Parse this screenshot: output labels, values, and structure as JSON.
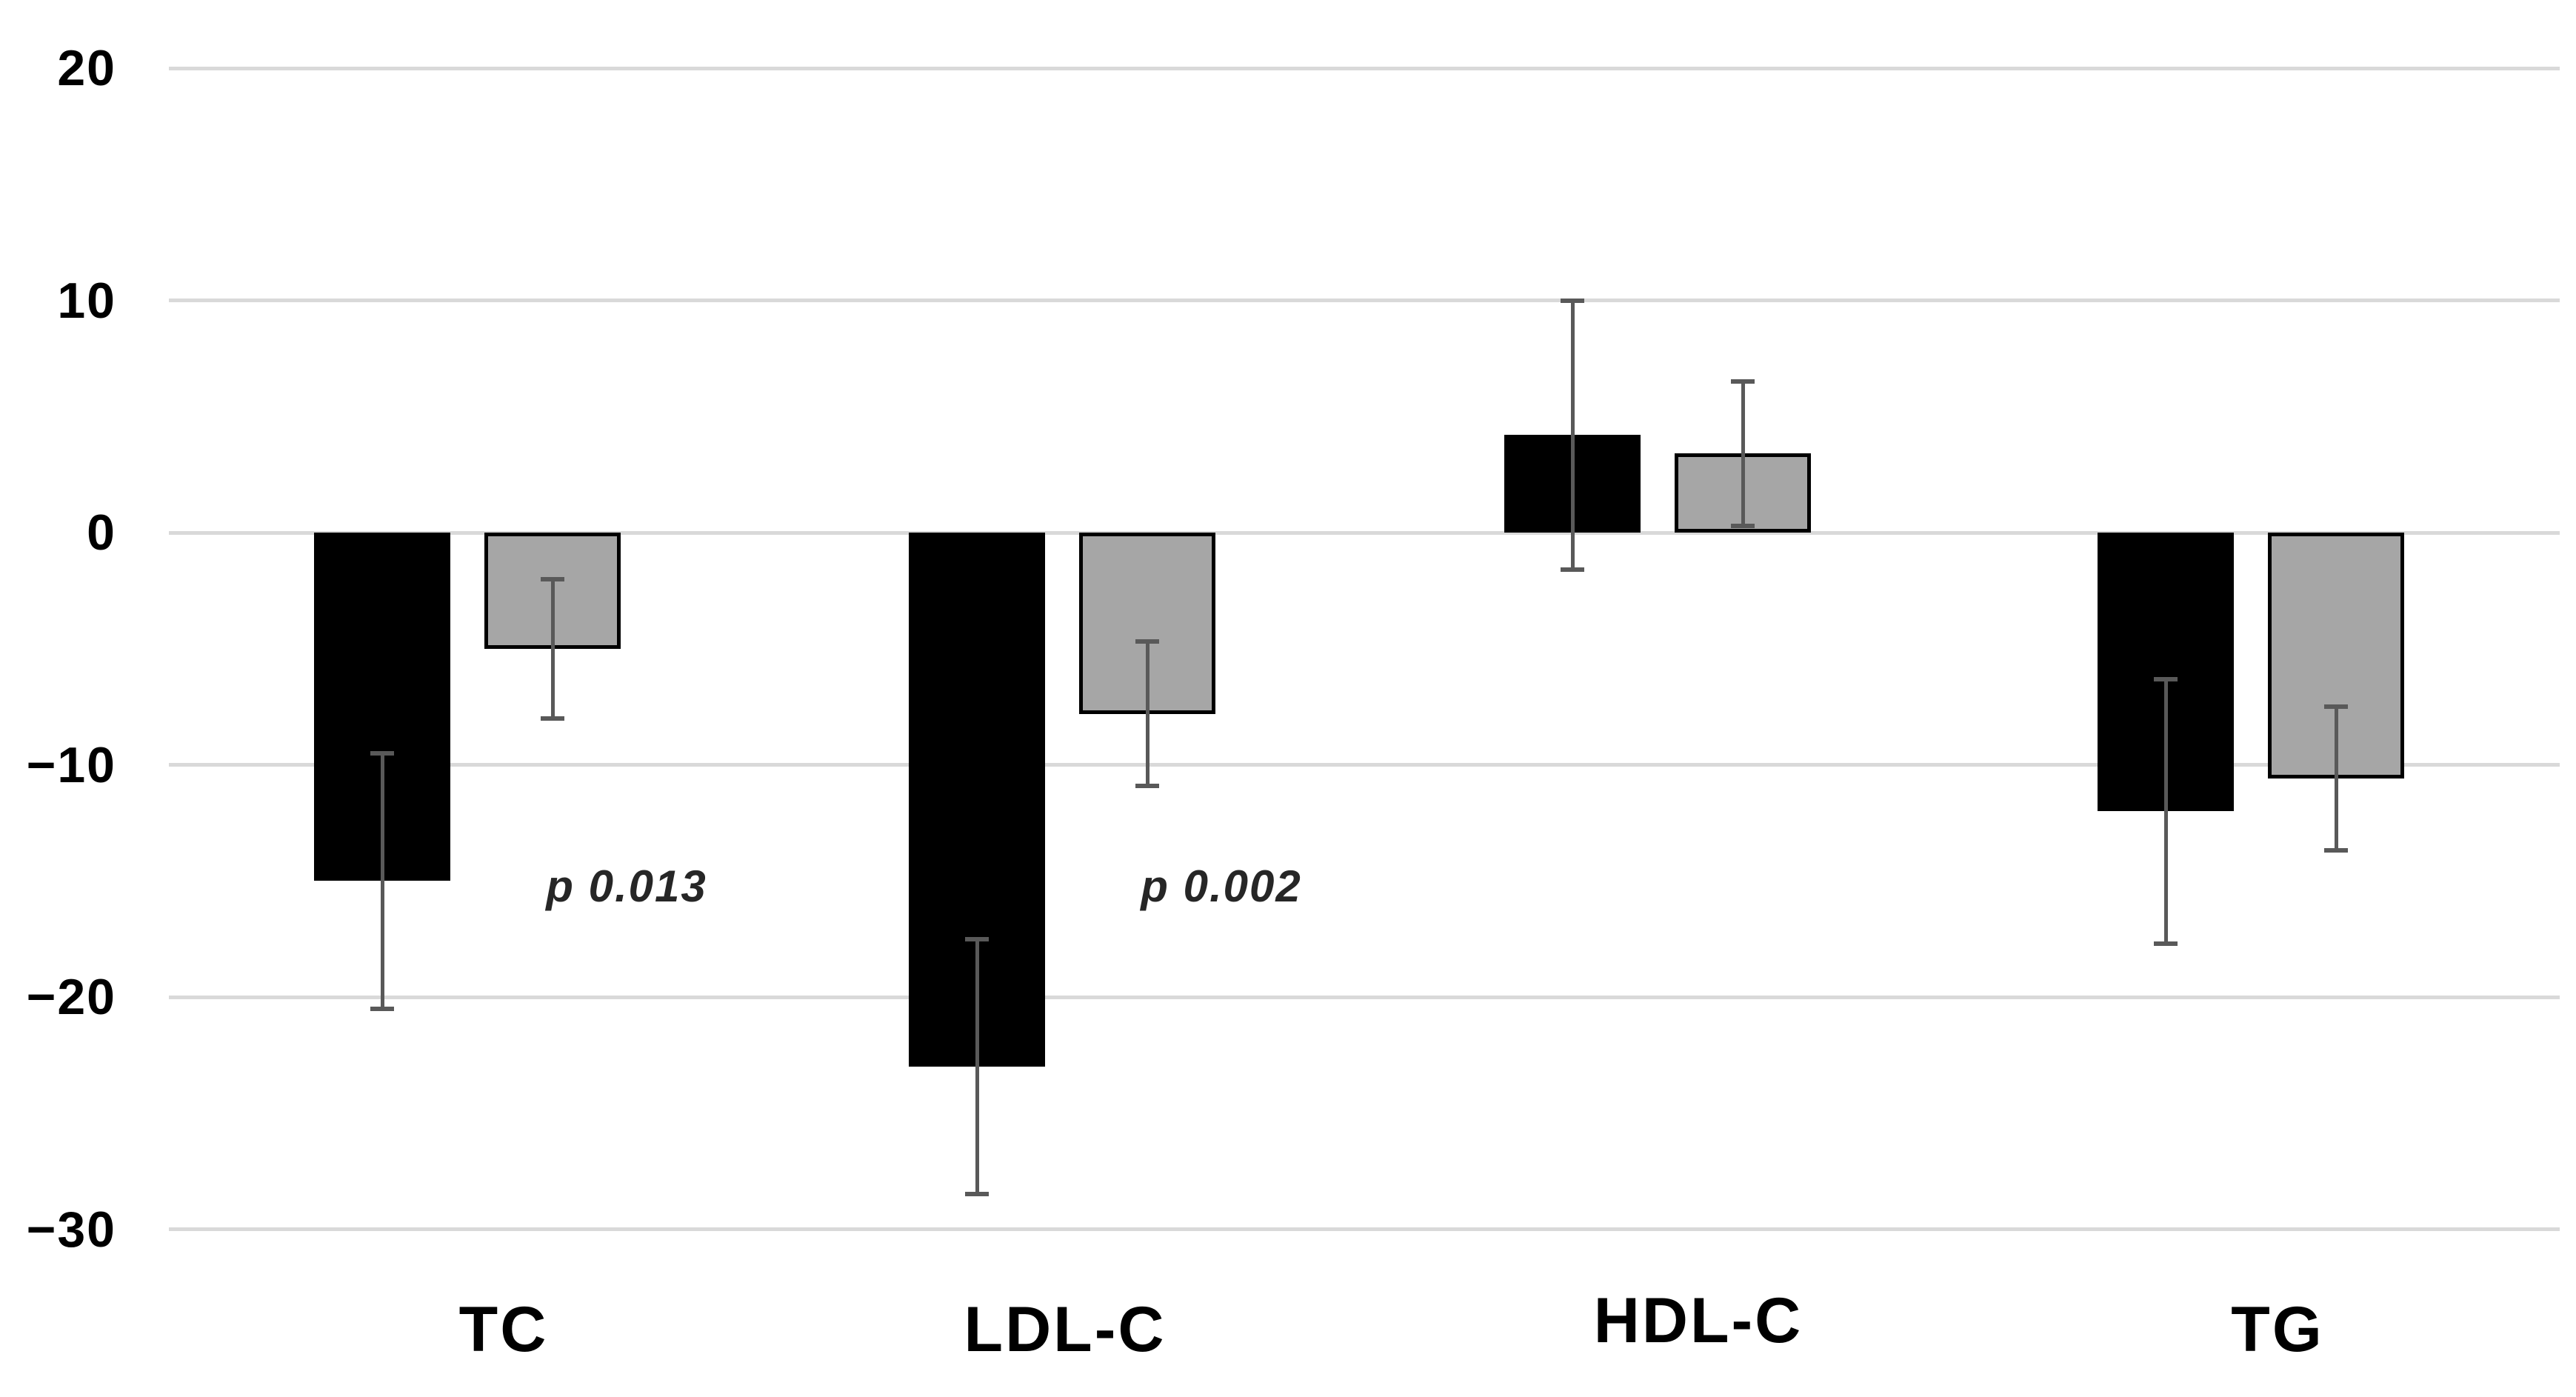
{
  "chart_data": {
    "type": "bar",
    "title": "",
    "xlabel": "",
    "ylabel": "",
    "categories": [
      "TC",
      "LDL-C",
      "HDL-C",
      "TG"
    ],
    "series": [
      {
        "name": "black",
        "color": "#000000",
        "bordered": false,
        "values": [
          -15.0,
          -23.0,
          4.2,
          -12.0
        ],
        "errors": [
          5.5,
          5.5,
          5.8,
          5.7
        ]
      },
      {
        "name": "gray",
        "color": "#a6a6a6",
        "bordered": true,
        "values": [
          -5.0,
          -7.8,
          3.4,
          -10.6
        ],
        "errors": [
          3.0,
          3.1,
          3.1,
          3.1
        ]
      }
    ],
    "error_bars": true,
    "annotations": [
      {
        "text": "p 0.013",
        "category": "TC"
      },
      {
        "text": "p 0.002",
        "category": "LDL-C"
      }
    ],
    "y_tick_labels": [
      "20",
      "10",
      "0",
      "−10",
      "−20",
      "−30"
    ],
    "y_tick_values": [
      20,
      10,
      0,
      -10,
      -20,
      -30
    ],
    "ylim": [
      -30,
      20
    ],
    "grid": true,
    "legend": false
  },
  "colors": {
    "black_series": "#000000",
    "gray_series": "#a6a6a6",
    "bar_border": "#000000",
    "whisker": "#595959",
    "gridline": "#d9d9d9",
    "axis_text": "#000000",
    "annotation_text": "#262626",
    "background": "#ffffff"
  }
}
